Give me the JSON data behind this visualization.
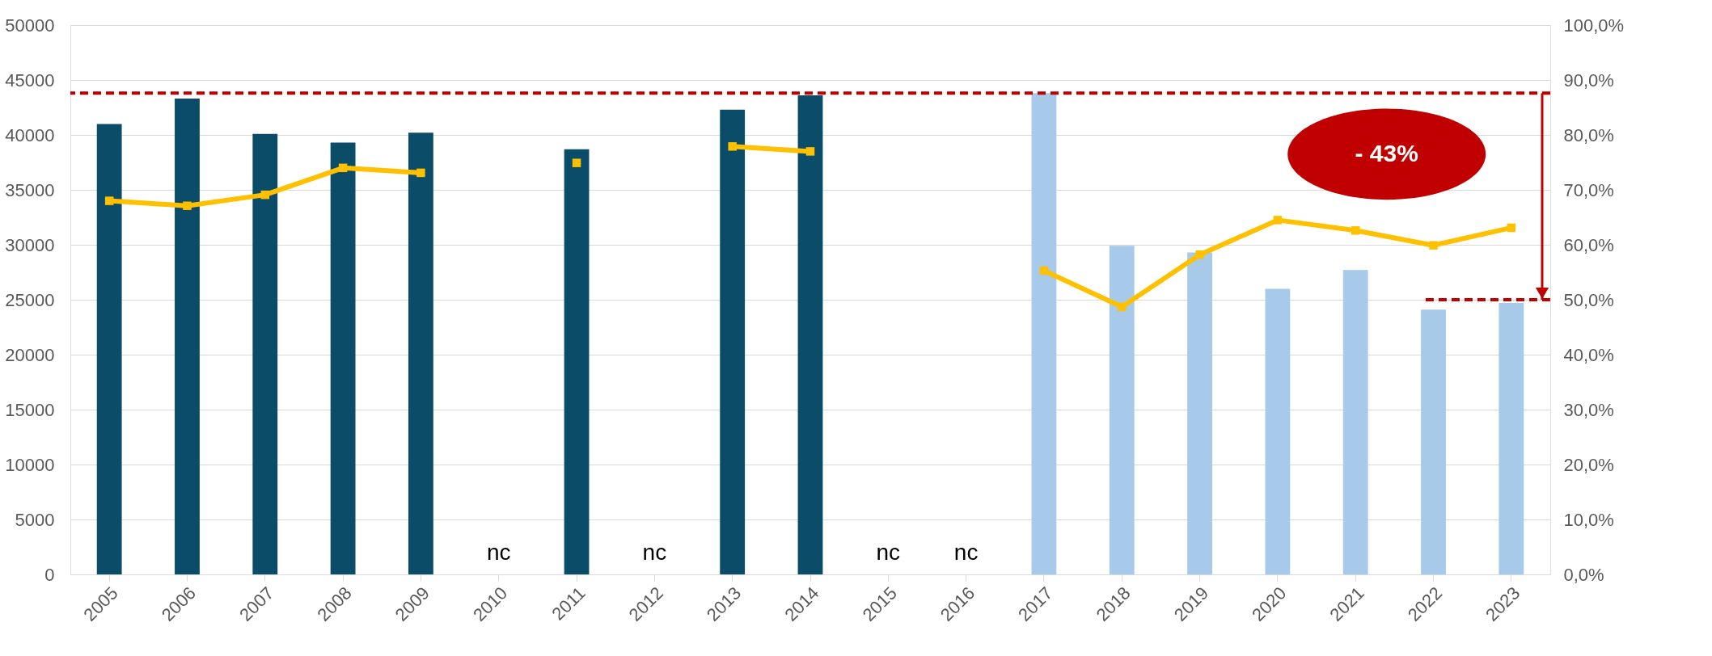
{
  "chart_data": {
    "type": "bar",
    "categories": [
      "2005",
      "2006",
      "2007",
      "2008",
      "2009",
      "2010",
      "2011",
      "2012",
      "2013",
      "2014",
      "2015",
      "2016",
      "2017",
      "2018",
      "2019",
      "2020",
      "2021",
      "2022",
      "2023"
    ],
    "series": [
      {
        "values": [
          41000,
          43300,
          40100,
          39300,
          40200,
          null,
          38700,
          null,
          42300,
          43600,
          null,
          null,
          43800,
          29900,
          29300,
          26000,
          27700,
          24100,
          24700
        ],
        "colors": [
          "#0b4d68",
          "#0b4d68",
          "#0b4d68",
          "#0b4d68",
          "#0b4d68",
          "#0b4d68",
          "#0b4d68",
          "#0b4d68",
          "#0b4d68",
          "#0b4d68",
          "#a7c9ea",
          "#a7c9ea",
          "#a7c9ea",
          "#a7c9ea",
          "#a7c9ea",
          "#a7c9ea",
          "#a7c9ea",
          "#a7c9ea",
          "#a7c9ea"
        ]
      },
      {
        "type": "line",
        "axis": "y2",
        "color": "#ffc000",
        "marker": "square",
        "values": [
          68,
          67.1,
          69.1,
          74,
          73.1,
          null,
          74.9,
          null,
          77.9,
          77,
          null,
          null,
          55.3,
          48.7,
          58.2,
          64.5,
          62.6,
          59.9,
          63.1
        ]
      }
    ],
    "ylim": [
      0,
      50000
    ],
    "yticks": [
      0,
      5000,
      10000,
      15000,
      20000,
      25000,
      30000,
      35000,
      40000,
      45000,
      50000
    ],
    "y2lim": [
      0,
      100
    ],
    "y2ticks": [
      {
        "value": 0,
        "label": "0,0%"
      },
      {
        "value": 10,
        "label": "10,0%"
      },
      {
        "value": 20,
        "label": "20,0%"
      },
      {
        "value": 30,
        "label": "30,0%"
      },
      {
        "value": 40,
        "label": "40,0%"
      },
      {
        "value": 50,
        "label": "50,0%"
      },
      {
        "value": 60,
        "label": "60,0%"
      },
      {
        "value": 70,
        "label": "70,0%"
      },
      {
        "value": 80,
        "label": "80,0%"
      },
      {
        "value": 90,
        "label": "90,0%"
      },
      {
        "value": 100,
        "label": "100,0%"
      }
    ],
    "ref_lines": [
      {
        "axis": "y",
        "value": 43800,
        "color": "#c00000",
        "line_style": "dashed"
      },
      {
        "axis": "y2",
        "value": 50,
        "color": "#c00000",
        "line_style": "dashed"
      }
    ],
    "annotations": [
      "nc",
      "nc",
      "nc",
      "nc",
      "- 43%"
    ],
    "grid": "y"
  }
}
